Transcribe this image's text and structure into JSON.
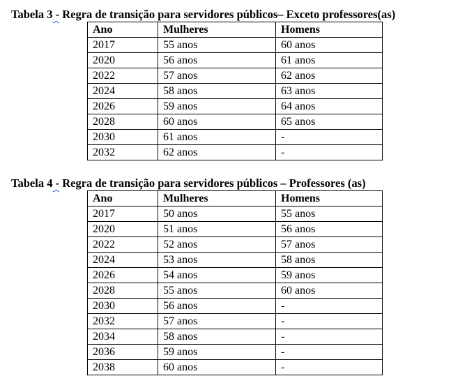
{
  "table3": {
    "caption_label": "Tabela 3",
    "caption_sep": " -",
    "caption_title": " Regra de transição para servidores públicos– Exceto professores(as)",
    "headers": [
      "Ano",
      "Mulheres",
      "Homens"
    ],
    "rows": [
      [
        "2017",
        "55 anos",
        "60 anos"
      ],
      [
        "2020",
        "56 anos",
        "61 anos"
      ],
      [
        "2022",
        "57 anos",
        "62 anos"
      ],
      [
        "2024",
        "58 anos",
        "63 anos"
      ],
      [
        "2026",
        "59 anos",
        "64 anos"
      ],
      [
        "2028",
        "60 anos",
        "65 anos"
      ],
      [
        "2030",
        "61 anos",
        "-"
      ],
      [
        "2032",
        "62 anos",
        "-"
      ]
    ]
  },
  "table4": {
    "caption_label": "Tabela 4",
    "caption_sep": " -",
    "caption_title": " Regra de transição para servidores públicos – Professores (as)",
    "headers": [
      "Ano",
      "Mulheres",
      "Homens"
    ],
    "rows": [
      [
        "2017",
        "50 anos",
        "55 anos"
      ],
      [
        "2020",
        "51 anos",
        "56 anos"
      ],
      [
        "2022",
        "52 anos",
        "57 anos"
      ],
      [
        "2024",
        "53 anos",
        "58 anos"
      ],
      [
        "2026",
        "54 anos",
        "59 anos"
      ],
      [
        "2028",
        "55 anos",
        "60 anos"
      ],
      [
        "2030",
        "56 anos",
        "-"
      ],
      [
        "2032",
        "57 anos",
        "-"
      ],
      [
        "2034",
        "58 anos",
        "-"
      ],
      [
        "2036",
        "59 anos",
        "-"
      ],
      [
        "2038",
        "60 anos",
        "-"
      ]
    ]
  },
  "colors": {
    "text": "#000000",
    "border": "#000000",
    "spellcheck_underline": "#3f6fb5",
    "background": "#ffffff"
  }
}
